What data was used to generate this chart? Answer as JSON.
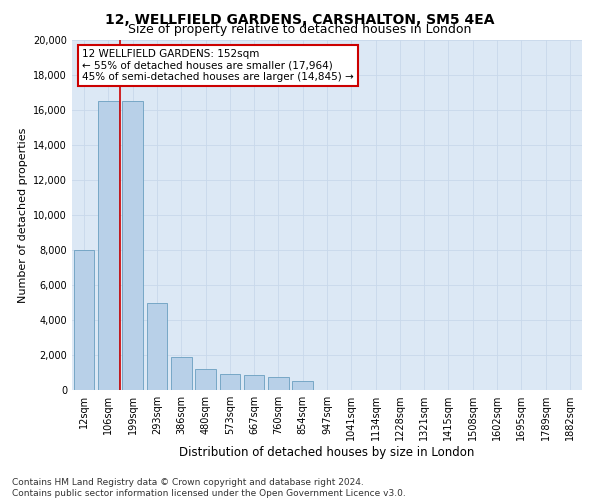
{
  "title1": "12, WELLFIELD GARDENS, CARSHALTON, SM5 4EA",
  "title2": "Size of property relative to detached houses in London",
  "xlabel": "Distribution of detached houses by size in London",
  "ylabel": "Number of detached properties",
  "footnote": "Contains HM Land Registry data © Crown copyright and database right 2024.\nContains public sector information licensed under the Open Government Licence v3.0.",
  "bar_labels": [
    "12sqm",
    "106sqm",
    "199sqm",
    "293sqm",
    "386sqm",
    "480sqm",
    "573sqm",
    "667sqm",
    "760sqm",
    "854sqm",
    "947sqm",
    "1041sqm",
    "1134sqm",
    "1228sqm",
    "1321sqm",
    "1415sqm",
    "1508sqm",
    "1602sqm",
    "1695sqm",
    "1789sqm",
    "1882sqm"
  ],
  "bar_values": [
    8000,
    16500,
    16500,
    5000,
    1900,
    1200,
    900,
    850,
    750,
    500,
    0,
    0,
    0,
    0,
    0,
    0,
    0,
    0,
    0,
    0,
    0
  ],
  "bar_color": "#b8d0e8",
  "bar_edge_color": "#6a9fc0",
  "property_line_color": "#cc0000",
  "annotation_title": "12 WELLFIELD GARDENS: 152sqm",
  "annotation_line1": "← 55% of detached houses are smaller (17,964)",
  "annotation_line2": "45% of semi-detached houses are larger (14,845) →",
  "annotation_box_color": "#cc0000",
  "ylim": [
    0,
    20000
  ],
  "yticks": [
    0,
    2000,
    4000,
    6000,
    8000,
    10000,
    12000,
    14000,
    16000,
    18000,
    20000
  ],
  "grid_color": "#c8d8eb",
  "plot_bg_color": "#dce8f5",
  "title1_fontsize": 10,
  "title2_fontsize": 9,
  "xlabel_fontsize": 8.5,
  "ylabel_fontsize": 8,
  "tick_fontsize": 7,
  "annotation_fontsize": 7.5,
  "footnote_fontsize": 6.5
}
